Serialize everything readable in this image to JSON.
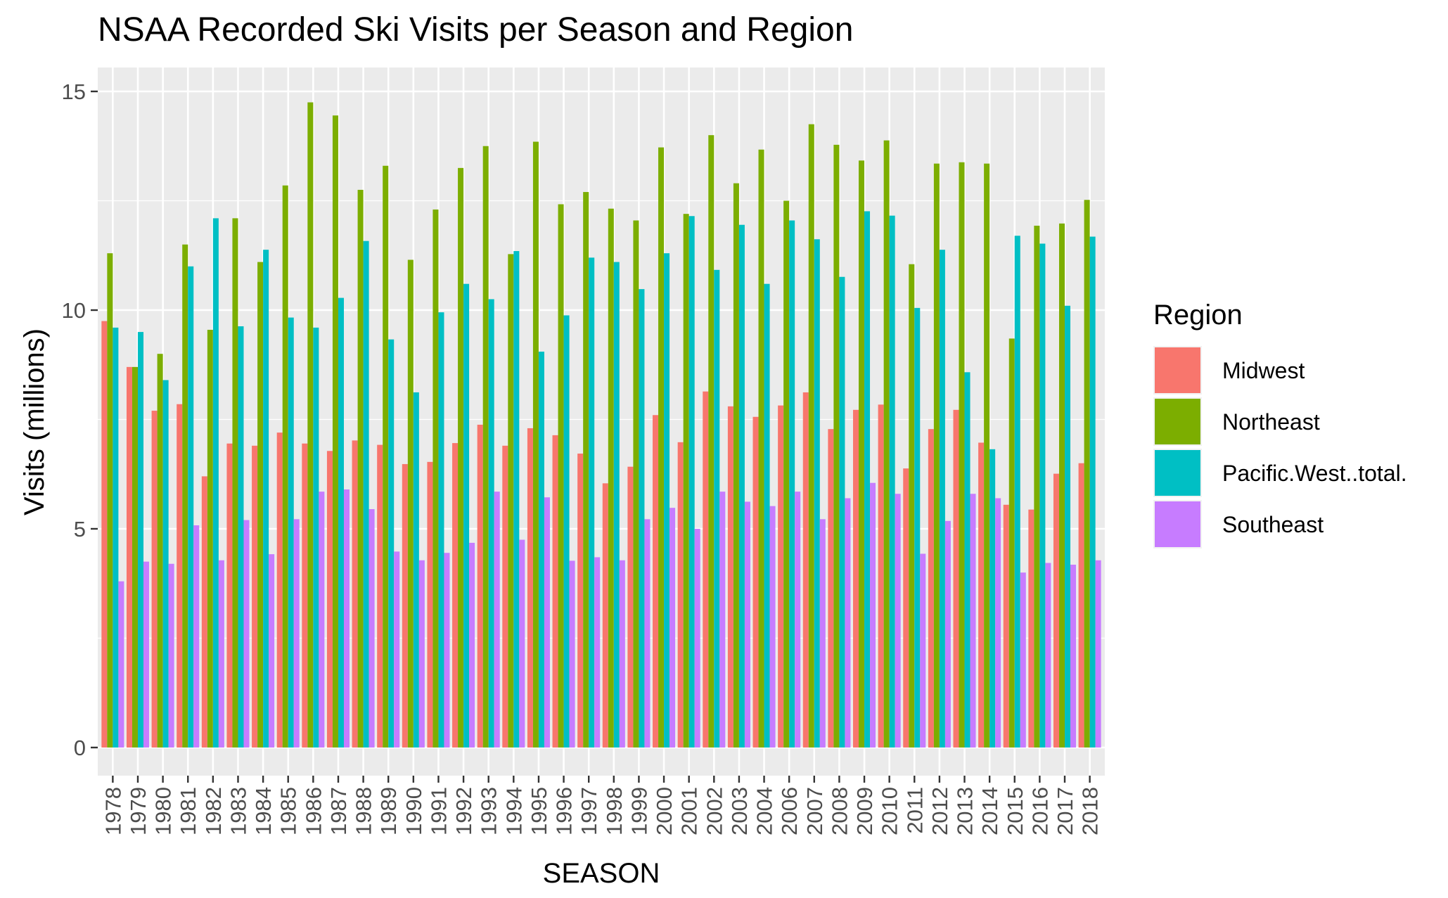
{
  "chart_data": {
    "type": "bar",
    "title": "NSAA Recorded Ski Visits per Season and Region",
    "xlabel": "SEASON",
    "ylabel": "Visits (millions)",
    "ylim": [
      0,
      15.5
    ],
    "yticks": [
      0,
      5,
      10,
      15
    ],
    "grid": true,
    "legend": {
      "title": "Region",
      "placement": "right"
    },
    "categories": [
      "1978",
      "1979",
      "1980",
      "1981",
      "1982",
      "1983",
      "1984",
      "1985",
      "1986",
      "1987",
      "1988",
      "1989",
      "1990",
      "1991",
      "1992",
      "1993",
      "1994",
      "1995",
      "1996",
      "1997",
      "1998",
      "1999",
      "2000",
      "2001",
      "2002",
      "2003",
      "2004",
      "2006",
      "2007",
      "2008",
      "2009",
      "2010",
      "2011",
      "2012",
      "2013",
      "2014",
      "2015",
      "2016",
      "2017",
      "2018"
    ],
    "series": [
      {
        "name": "Midwest",
        "color": "#F8766D",
        "values": [
          9.75,
          8.7,
          7.7,
          7.85,
          6.2,
          6.95,
          6.9,
          7.2,
          6.95,
          6.78,
          7.02,
          6.92,
          6.48,
          6.53,
          6.96,
          7.38,
          6.9,
          7.3,
          7.14,
          6.72,
          6.04,
          6.42,
          7.6,
          6.98,
          8.14,
          7.8,
          7.56,
          7.82,
          8.12,
          7.28,
          7.72,
          7.84,
          6.38,
          7.28,
          7.72,
          6.97,
          5.55,
          5.44,
          6.26,
          6.5
        ]
      },
      {
        "name": "Northeast",
        "color": "#7CAE00",
        "values": [
          11.3,
          8.7,
          9.0,
          11.5,
          9.55,
          12.1,
          11.1,
          12.85,
          14.75,
          14.45,
          12.75,
          13.3,
          11.15,
          12.3,
          13.25,
          13.75,
          11.28,
          13.85,
          12.42,
          12.7,
          12.32,
          12.05,
          13.72,
          12.2,
          14.0,
          12.9,
          13.67,
          12.5,
          14.25,
          13.78,
          13.42,
          13.88,
          11.05,
          13.35,
          13.38,
          13.35,
          9.35,
          11.93,
          11.98,
          12.52
        ]
      },
      {
        "name": "Pacific.West..total.",
        "color": "#00BFC4",
        "values": [
          9.6,
          9.5,
          8.4,
          11.0,
          12.1,
          9.63,
          11.38,
          9.83,
          9.6,
          10.28,
          11.58,
          9.33,
          8.12,
          9.95,
          10.6,
          10.25,
          11.35,
          9.05,
          9.88,
          11.2,
          11.1,
          10.48,
          11.3,
          12.15,
          10.92,
          11.95,
          10.6,
          12.05,
          11.62,
          10.76,
          12.26,
          12.16,
          10.05,
          11.38,
          8.58,
          6.82,
          11.7,
          11.52,
          10.1,
          11.68
        ]
      },
      {
        "name": "Southeast",
        "color": "#C77CFF",
        "values": [
          3.8,
          4.25,
          4.2,
          5.08,
          4.28,
          5.2,
          4.42,
          5.22,
          5.85,
          5.9,
          5.45,
          4.48,
          4.28,
          4.45,
          4.68,
          5.85,
          4.75,
          5.72,
          4.27,
          4.35,
          4.28,
          5.22,
          5.48,
          5.0,
          5.85,
          5.62,
          5.52,
          5.85,
          5.22,
          5.7,
          6.05,
          5.8,
          4.43,
          5.18,
          5.8,
          5.7,
          4.0,
          4.22,
          4.18,
          4.28
        ]
      }
    ]
  }
}
